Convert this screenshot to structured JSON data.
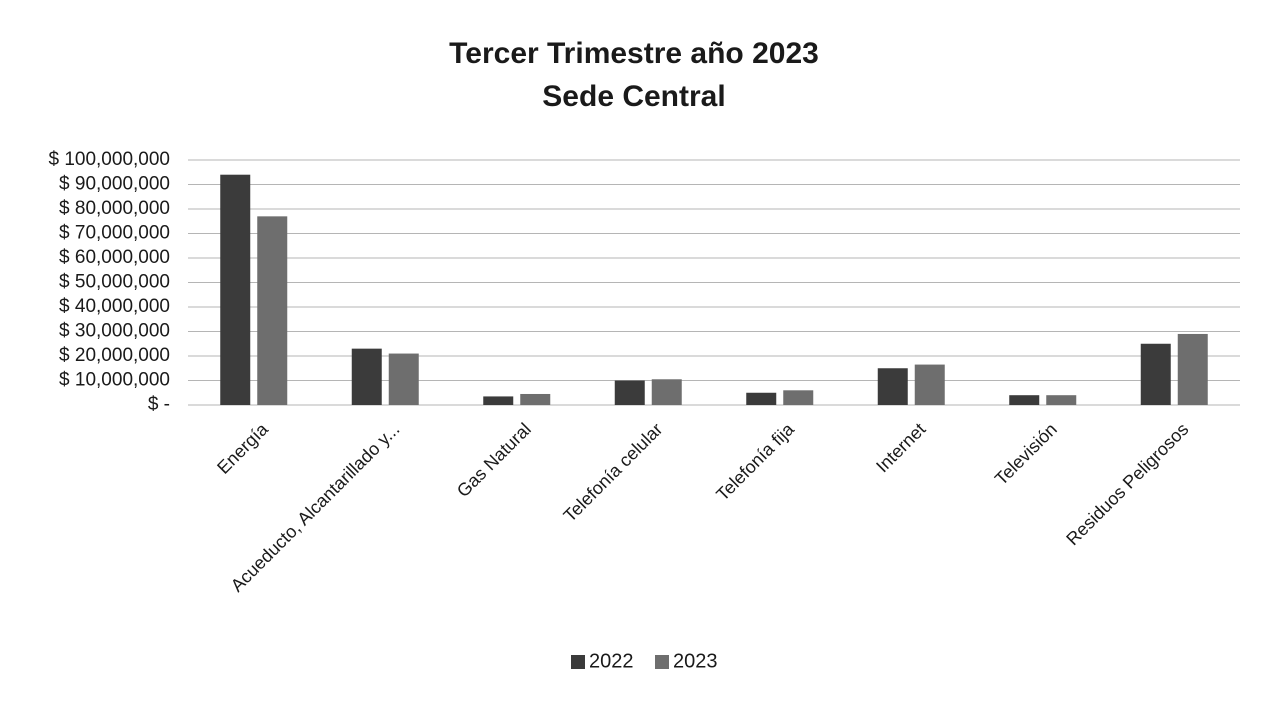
{
  "chart_data": {
    "type": "bar",
    "title": "Tercer Trimestre año 2023",
    "subtitle": "Sede Central",
    "categories": [
      "Energía",
      "Acueducto, Alcantarillado y...",
      "Gas Natural",
      "Telefonía celular",
      "Telefonía fija",
      "Internet",
      "Televisión",
      "Residuos Peligrosos"
    ],
    "series": [
      {
        "name": "2022",
        "color": "#3b3b3b",
        "values": [
          94000000,
          23000000,
          3500000,
          10000000,
          5000000,
          15000000,
          4000000,
          25000000
        ]
      },
      {
        "name": "2023",
        "color": "#6e6e6e",
        "values": [
          77000000,
          21000000,
          4500000,
          10500000,
          6000000,
          16500000,
          4000000,
          29000000
        ]
      }
    ],
    "ylim": [
      0,
      100000000
    ],
    "yticks": [
      {
        "value": 0,
        "label": "$ -"
      },
      {
        "value": 10000000,
        "label": "$ 10,000,000"
      },
      {
        "value": 20000000,
        "label": "$ 20,000,000"
      },
      {
        "value": 30000000,
        "label": "$ 30,000,000"
      },
      {
        "value": 40000000,
        "label": "$ 40,000,000"
      },
      {
        "value": 50000000,
        "label": "$ 50,000,000"
      },
      {
        "value": 60000000,
        "label": "$ 60,000,000"
      },
      {
        "value": 70000000,
        "label": "$ 70,000,000"
      },
      {
        "value": 80000000,
        "label": "$ 80,000,000"
      },
      {
        "value": 90000000,
        "label": "$ 90,000,000"
      },
      {
        "value": 100000000,
        "label": "$ 100,000,000"
      }
    ],
    "grid": true,
    "legend": "bottom"
  }
}
